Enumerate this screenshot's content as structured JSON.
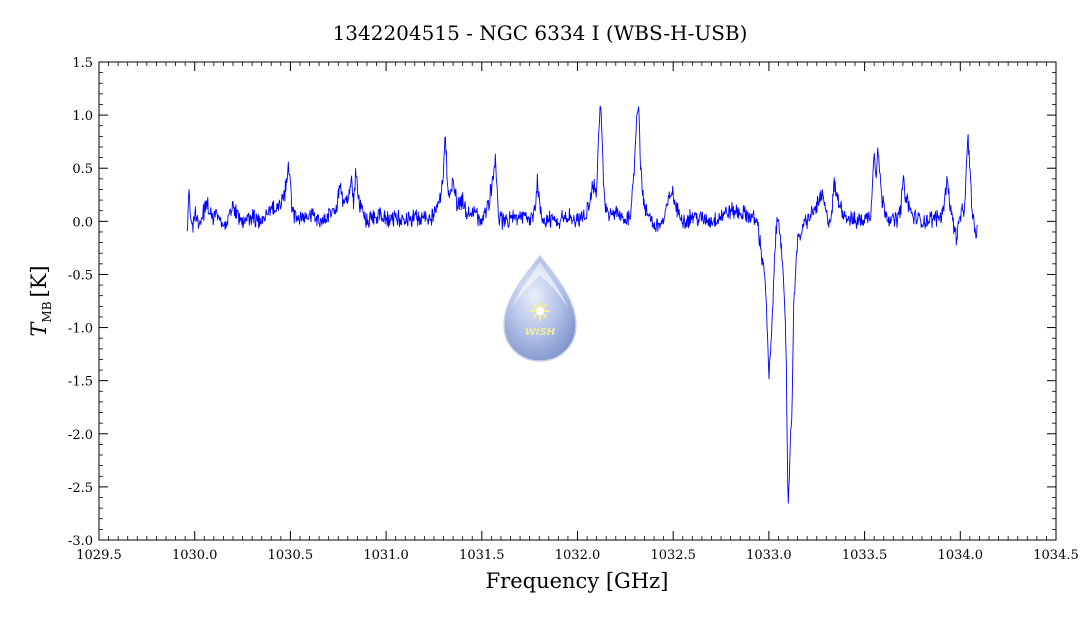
{
  "chart_data": {
    "type": "line",
    "title": "1342204515 - NGC 6334 I (WBS-H-USB)",
    "xlabel": "Frequency [GHz]",
    "ylabel": {
      "symbol": "T",
      "subscript": "MB",
      "unit": "[K]"
    },
    "xlim": [
      1029.5,
      1034.5
    ],
    "ylim": [
      -3.0,
      1.5
    ],
    "xticks": [
      "1029.5",
      "1030.0",
      "1030.5",
      "1031.0",
      "1031.5",
      "1032.0",
      "1032.5",
      "1033.0",
      "1033.5",
      "1034.0",
      "1034.5"
    ],
    "yticks": [
      "-3.0",
      "-2.5",
      "-2.0",
      "-1.5",
      "-1.0",
      "-0.5",
      "0.0",
      "0.5",
      "1.0",
      "1.5"
    ],
    "grid": false,
    "logo": {
      "text": "WISH"
    },
    "series": [
      {
        "color": "#0000ff",
        "x": [
          1029.96,
          1029.97,
          1029.98,
          1029.99,
          1030.0,
          1030.03,
          1030.06,
          1030.09,
          1030.12,
          1030.15,
          1030.2,
          1030.25,
          1030.3,
          1030.35,
          1030.4,
          1030.45,
          1030.47,
          1030.49,
          1030.5,
          1030.51,
          1030.53,
          1030.56,
          1030.6,
          1030.65,
          1030.7,
          1030.74,
          1030.76,
          1030.78,
          1030.8,
          1030.82,
          1030.83,
          1030.84,
          1030.86,
          1030.88,
          1030.9,
          1030.95,
          1031.0,
          1031.05,
          1031.1,
          1031.15,
          1031.2,
          1031.25,
          1031.28,
          1031.3,
          1031.31,
          1031.32,
          1031.33,
          1031.35,
          1031.37,
          1031.4,
          1031.42,
          1031.45,
          1031.5,
          1031.54,
          1031.56,
          1031.57,
          1031.58,
          1031.59,
          1031.61,
          1031.65,
          1031.7,
          1031.75,
          1031.78,
          1031.79,
          1031.8,
          1031.81,
          1031.83,
          1031.87,
          1031.9,
          1031.95,
          1032.0,
          1032.05,
          1032.08,
          1032.1,
          1032.11,
          1032.12,
          1032.13,
          1032.14,
          1032.16,
          1032.2,
          1032.25,
          1032.28,
          1032.3,
          1032.31,
          1032.32,
          1032.33,
          1032.35,
          1032.38,
          1032.4,
          1032.45,
          1032.47,
          1032.49,
          1032.52,
          1032.56,
          1032.6,
          1032.65,
          1032.7,
          1032.75,
          1032.8,
          1032.85,
          1032.9,
          1032.94,
          1032.96,
          1032.98,
          1032.99,
          1033.0,
          1033.01,
          1033.02,
          1033.03,
          1033.04,
          1033.05,
          1033.06,
          1033.07,
          1033.08,
          1033.09,
          1033.1,
          1033.11,
          1033.12,
          1033.13,
          1033.14,
          1033.15,
          1033.17,
          1033.19,
          1033.22,
          1033.25,
          1033.28,
          1033.3,
          1033.32,
          1033.33,
          1033.34,
          1033.36,
          1033.4,
          1033.45,
          1033.5,
          1033.53,
          1033.54,
          1033.55,
          1033.56,
          1033.57,
          1033.59,
          1033.62,
          1033.65,
          1033.68,
          1033.69,
          1033.7,
          1033.72,
          1033.75,
          1033.8,
          1033.85,
          1033.9,
          1033.92,
          1033.93,
          1033.94,
          1033.96,
          1033.98,
          1034.0,
          1034.02,
          1034.03,
          1034.04,
          1034.05,
          1034.06,
          1034.07,
          1034.08,
          1034.09
        ],
        "y": [
          -0.15,
          0.3,
          0.05,
          -0.08,
          0.1,
          -0.05,
          0.2,
          0.02,
          0.08,
          -0.04,
          0.12,
          0.0,
          0.05,
          -0.02,
          0.1,
          0.15,
          0.25,
          0.5,
          0.35,
          0.1,
          0.05,
          0.02,
          0.08,
          0.0,
          0.05,
          0.1,
          0.35,
          0.15,
          0.2,
          0.4,
          0.1,
          0.45,
          0.2,
          0.05,
          0.0,
          0.05,
          0.03,
          0.05,
          0.0,
          0.05,
          0.02,
          0.05,
          0.2,
          0.45,
          0.82,
          0.35,
          0.25,
          0.4,
          0.15,
          0.2,
          0.05,
          0.1,
          0.0,
          0.2,
          0.45,
          0.6,
          0.3,
          0.05,
          0.0,
          0.02,
          0.05,
          0.0,
          0.1,
          0.38,
          0.2,
          0.05,
          0.0,
          0.02,
          0.0,
          0.05,
          0.0,
          0.1,
          0.35,
          0.25,
          0.8,
          1.14,
          0.7,
          0.2,
          0.05,
          0.08,
          0.0,
          0.1,
          0.62,
          1.05,
          1.1,
          0.5,
          0.1,
          0.05,
          -0.05,
          0.0,
          0.15,
          0.3,
          0.1,
          0.0,
          0.05,
          0.02,
          0.0,
          0.05,
          0.1,
          0.08,
          0.05,
          0.0,
          -0.3,
          -0.5,
          -1.0,
          -1.45,
          -1.2,
          -0.85,
          -0.3,
          -0.05,
          0.05,
          -0.1,
          -0.4,
          -0.75,
          -1.2,
          -2.7,
          -2.2,
          -1.8,
          -0.8,
          -0.4,
          -0.2,
          -0.1,
          0.0,
          0.05,
          0.15,
          0.25,
          0.05,
          0.0,
          0.1,
          0.35,
          0.2,
          0.05,
          0.0,
          0.02,
          0.05,
          0.3,
          0.68,
          0.45,
          0.7,
          0.2,
          0.05,
          0.0,
          0.05,
          0.15,
          0.38,
          0.2,
          0.05,
          0.0,
          0.02,
          0.05,
          0.2,
          0.45,
          0.25,
          0.0,
          -0.15,
          0.05,
          0.1,
          0.4,
          0.8,
          0.5,
          0.15,
          0.0,
          -0.15,
          -0.05
        ]
      }
    ]
  }
}
